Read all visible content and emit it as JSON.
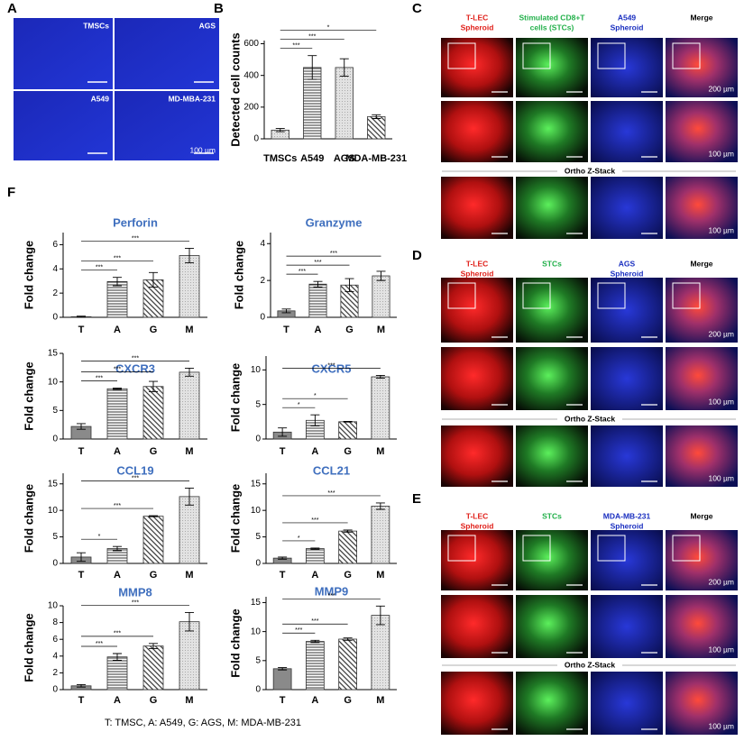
{
  "panel_labels": [
    "A",
    "B",
    "C",
    "D",
    "E",
    "F"
  ],
  "panel_a": {
    "labels": [
      "TMSCs",
      "AGS",
      "A549",
      "MD-MBA-231"
    ],
    "scale": "100 µm"
  },
  "panel_c": {
    "headers": [
      [
        "T-LEC",
        "Spheroid"
      ],
      [
        "Stimulated CD8+T",
        "cells (STCs)"
      ],
      [
        "A549",
        "Spheroid"
      ],
      [
        "Merge"
      ]
    ],
    "ortho": "Ortho Z-Stack",
    "scales": [
      "200 µm",
      "100 µm",
      "100 µm"
    ]
  },
  "panel_d": {
    "headers": [
      [
        "T-LEC",
        "Spheroid"
      ],
      [
        "STCs"
      ],
      [
        "AGS",
        "Spheroid"
      ],
      [
        "Merge"
      ]
    ],
    "ortho": "Ortho Z-Stack",
    "scales": [
      "200 µm",
      "100 µm",
      "100 µm"
    ]
  },
  "panel_e": {
    "headers": [
      [
        "T-LEC",
        "Spheroid"
      ],
      [
        "STCs"
      ],
      [
        "MDA-MB-231",
        "Spheroid"
      ],
      [
        "Merge"
      ]
    ],
    "ortho": "Ortho Z-Stack",
    "scales": [
      "200 µm",
      "100 µm",
      "100 µm"
    ]
  },
  "caption": "T: TMSC, A: A549, G: AGS, M: MDA-MB-231",
  "chart_data": [
    {
      "type": "bar",
      "ylabel": "Detected cell counts",
      "categories": [
        "TMSCs",
        "A549",
        "AGS",
        "MDA-MB-231"
      ],
      "values": [
        55,
        450,
        450,
        140
      ],
      "errors": [
        10,
        75,
        55,
        12
      ],
      "ylim": [
        0,
        620
      ],
      "yticks": [
        0,
        200,
        400,
        600
      ],
      "annotations": [
        "***",
        "***",
        "*"
      ]
    },
    {
      "type": "bar",
      "title": "Perforin",
      "ylabel": "Fold change",
      "categories": [
        "T",
        "A",
        "G",
        "M"
      ],
      "values": [
        0.05,
        2.95,
        3.1,
        5.1
      ],
      "errors": [
        0.05,
        0.35,
        0.6,
        0.6
      ],
      "ylim": [
        0,
        7
      ],
      "yticks": [
        0,
        2,
        4,
        6
      ],
      "annotations": [
        "***",
        "***",
        "***"
      ]
    },
    {
      "type": "bar",
      "title": "Granzyme",
      "ylabel": "Fold change",
      "categories": [
        "T",
        "A",
        "G",
        "M"
      ],
      "values": [
        0.35,
        1.8,
        1.75,
        2.25
      ],
      "errors": [
        0.1,
        0.15,
        0.35,
        0.25
      ],
      "ylim": [
        0,
        4.6
      ],
      "yticks": [
        0,
        2,
        4
      ],
      "annotations": [
        "***",
        "***",
        "***"
      ]
    },
    {
      "type": "bar",
      "title": "CXCR3",
      "ylabel": "Fold change",
      "categories": [
        "T",
        "A",
        "G",
        "M"
      ],
      "values": [
        2.2,
        8.8,
        9.2,
        11.7
      ],
      "errors": [
        0.5,
        0.1,
        0.9,
        0.7
      ],
      "ylim": [
        0,
        15
      ],
      "yticks": [
        0,
        5,
        10,
        15
      ],
      "annotations": [
        "***",
        "***",
        "***"
      ]
    },
    {
      "type": "bar",
      "title": "CXCR5",
      "ylabel": "Fold change",
      "categories": [
        "T",
        "A",
        "G",
        "M"
      ],
      "values": [
        1.0,
        2.7,
        2.5,
        9.0
      ],
      "errors": [
        0.6,
        0.8,
        0.05,
        0.2
      ],
      "ylim": [
        0,
        12
      ],
      "yticks": [
        0,
        5,
        10
      ],
      "annotations": [
        "*",
        "*",
        "***"
      ]
    },
    {
      "type": "bar",
      "title": "CCL19",
      "ylabel": "Fold change",
      "categories": [
        "T",
        "A",
        "G",
        "M"
      ],
      "values": [
        1.2,
        2.8,
        8.9,
        12.6
      ],
      "errors": [
        0.8,
        0.4,
        0.1,
        1.6
      ],
      "ylim": [
        0,
        17
      ],
      "yticks": [
        0,
        5,
        10,
        15
      ],
      "annotations": [
        "*",
        "***",
        "***"
      ]
    },
    {
      "type": "bar",
      "title": "CCL21",
      "ylabel": "Fold change",
      "categories": [
        "T",
        "A",
        "G",
        "M"
      ],
      "values": [
        1.0,
        2.8,
        6.1,
        10.8
      ],
      "errors": [
        0.2,
        0.1,
        0.2,
        0.6
      ],
      "ylim": [
        0,
        17
      ],
      "yticks": [
        0,
        5,
        10,
        15
      ],
      "annotations": [
        "*",
        "***",
        "***"
      ]
    },
    {
      "type": "bar",
      "title": "MMP8",
      "ylabel": "Fold change",
      "categories": [
        "T",
        "A",
        "G",
        "M"
      ],
      "values": [
        0.45,
        3.9,
        5.2,
        8.1
      ],
      "errors": [
        0.15,
        0.4,
        0.3,
        1.1
      ],
      "ylim": [
        0,
        10
      ],
      "yticks": [
        0,
        2,
        4,
        6,
        8,
        10
      ],
      "annotations": [
        "***",
        "***",
        "***"
      ]
    },
    {
      "type": "bar",
      "title": "MMP9",
      "ylabel": "Fold change",
      "categories": [
        "T",
        "A",
        "G",
        "M"
      ],
      "values": [
        3.6,
        8.3,
        8.7,
        12.8
      ],
      "errors": [
        0.2,
        0.2,
        0.2,
        1.6
      ],
      "ylim": [
        0,
        16
      ],
      "yticks": [
        0,
        5,
        10,
        15
      ],
      "annotations": [
        "***",
        "***",
        "***"
      ]
    }
  ]
}
